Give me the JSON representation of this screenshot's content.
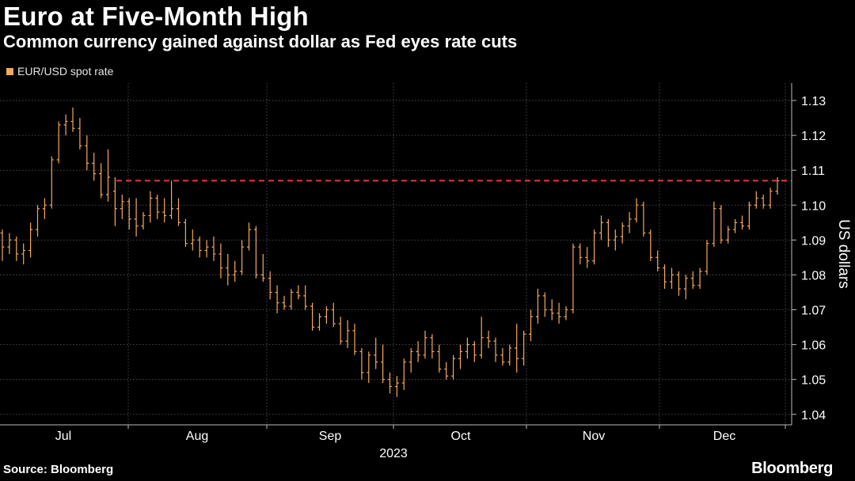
{
  "title": "Euro at Five-Month High",
  "subtitle": "Common currency gained against dollar as Fed eyes rate cuts",
  "legend_label": "EUR/USD spot rate",
  "source": "Source: Bloomberg",
  "brand": "Bloomberg",
  "colors": {
    "series": "#f5a95b",
    "reference": "#e8363d",
    "grid": "#5a5a5a",
    "axis": "#bdbdbd",
    "background": "#000000"
  },
  "chart_data": {
    "type": "bar",
    "subtype": "ohlc",
    "title": "Euro at Five-Month High",
    "subtitle": "Common currency gained against dollar as Fed eyes rate cuts",
    "xlabel": "2023",
    "ylabel": "US dollars",
    "ylim": [
      1.037,
      1.135
    ],
    "yticks": [
      1.04,
      1.05,
      1.06,
      1.07,
      1.08,
      1.09,
      1.1,
      1.11,
      1.12,
      1.13
    ],
    "ytick_labels": [
      "1.04",
      "1.05",
      "1.06",
      "1.07",
      "1.08",
      "1.09",
      "1.10",
      "1.11",
      "1.12",
      "1.13"
    ],
    "month_labels": [
      "Jul",
      "Aug",
      "Sep",
      "Oct",
      "Nov",
      "Dec"
    ],
    "year_label": "2023",
    "legend": [
      "EUR/USD spot rate"
    ],
    "reference_line": {
      "value": 1.107,
      "style": "dashed"
    },
    "grid": true,
    "series": [
      {
        "name": "EUR/USD spot rate",
        "ohlc": [
          [
            1.092,
            1.093,
            1.084,
            1.088
          ],
          [
            1.088,
            1.092,
            1.086,
            1.09
          ],
          [
            1.09,
            1.091,
            1.084,
            1.086
          ],
          [
            1.086,
            1.089,
            1.083,
            1.087
          ],
          [
            1.087,
            1.095,
            1.085,
            1.093
          ],
          [
            1.093,
            1.1,
            1.091,
            1.099
          ],
          [
            1.099,
            1.102,
            1.096,
            1.1
          ],
          [
            1.1,
            1.114,
            1.099,
            1.113
          ],
          [
            1.113,
            1.124,
            1.112,
            1.123
          ],
          [
            1.123,
            1.126,
            1.12,
            1.124
          ],
          [
            1.124,
            1.128,
            1.121,
            1.122
          ],
          [
            1.122,
            1.125,
            1.116,
            1.117
          ],
          [
            1.117,
            1.12,
            1.11,
            1.112
          ],
          [
            1.112,
            1.115,
            1.107,
            1.109
          ],
          [
            1.109,
            1.112,
            1.102,
            1.103
          ],
          [
            1.103,
            1.116,
            1.101,
            1.108
          ],
          [
            1.104,
            1.108,
            1.094,
            1.099
          ],
          [
            1.099,
            1.103,
            1.096,
            1.101
          ],
          [
            1.101,
            1.102,
            1.093,
            1.096
          ],
          [
            1.096,
            1.102,
            1.091,
            1.094
          ],
          [
            1.094,
            1.098,
            1.093,
            1.097
          ],
          [
            1.097,
            1.104,
            1.095,
            1.102
          ],
          [
            1.102,
            1.103,
            1.096,
            1.098
          ],
          [
            1.098,
            1.102,
            1.095,
            1.097
          ],
          [
            1.097,
            1.107,
            1.096,
            1.099
          ],
          [
            1.099,
            1.102,
            1.094,
            1.095
          ],
          [
            1.095,
            1.096,
            1.088,
            1.089
          ],
          [
            1.089,
            1.093,
            1.087,
            1.09
          ],
          [
            1.09,
            1.091,
            1.085,
            1.087
          ],
          [
            1.087,
            1.09,
            1.085,
            1.088
          ],
          [
            1.088,
            1.091,
            1.084,
            1.086
          ],
          [
            1.086,
            1.089,
            1.079,
            1.082
          ],
          [
            1.082,
            1.086,
            1.077,
            1.08
          ],
          [
            1.08,
            1.084,
            1.078,
            1.081
          ],
          [
            1.081,
            1.09,
            1.08,
            1.088
          ],
          [
            1.088,
            1.095,
            1.087,
            1.093
          ],
          [
            1.093,
            1.094,
            1.079,
            1.08
          ],
          [
            1.08,
            1.086,
            1.078,
            1.079
          ],
          [
            1.079,
            1.081,
            1.073,
            1.075
          ],
          [
            1.075,
            1.077,
            1.069,
            1.072
          ],
          [
            1.072,
            1.074,
            1.07,
            1.071
          ],
          [
            1.071,
            1.076,
            1.07,
            1.075
          ],
          [
            1.075,
            1.077,
            1.073,
            1.074
          ],
          [
            1.074,
            1.077,
            1.07,
            1.071
          ],
          [
            1.071,
            1.072,
            1.064,
            1.065
          ],
          [
            1.065,
            1.069,
            1.064,
            1.068
          ],
          [
            1.068,
            1.071,
            1.066,
            1.07
          ],
          [
            1.07,
            1.072,
            1.065,
            1.066
          ],
          [
            1.066,
            1.068,
            1.06,
            1.061
          ],
          [
            1.061,
            1.067,
            1.059,
            1.064
          ],
          [
            1.064,
            1.066,
            1.057,
            1.058
          ],
          [
            1.058,
            1.059,
            1.05,
            1.052
          ],
          [
            1.052,
            1.058,
            1.049,
            1.057
          ],
          [
            1.057,
            1.062,
            1.053,
            1.055
          ],
          [
            1.055,
            1.06,
            1.049,
            1.05
          ],
          [
            1.05,
            1.052,
            1.046,
            1.048
          ],
          [
            1.048,
            1.051,
            1.045,
            1.049
          ],
          [
            1.049,
            1.056,
            1.047,
            1.055
          ],
          [
            1.055,
            1.059,
            1.052,
            1.058
          ],
          [
            1.058,
            1.061,
            1.055,
            1.057
          ],
          [
            1.057,
            1.064,
            1.056,
            1.062
          ],
          [
            1.062,
            1.063,
            1.056,
            1.058
          ],
          [
            1.058,
            1.06,
            1.052,
            1.053
          ],
          [
            1.053,
            1.055,
            1.05,
            1.051
          ],
          [
            1.051,
            1.057,
            1.05,
            1.056
          ],
          [
            1.056,
            1.06,
            1.053,
            1.058
          ],
          [
            1.058,
            1.062,
            1.056,
            1.06
          ],
          [
            1.06,
            1.061,
            1.055,
            1.057
          ],
          [
            1.057,
            1.068,
            1.056,
            1.062
          ],
          [
            1.062,
            1.064,
            1.059,
            1.061
          ],
          [
            1.061,
            1.062,
            1.055,
            1.057
          ],
          [
            1.057,
            1.059,
            1.054,
            1.055
          ],
          [
            1.055,
            1.06,
            1.054,
            1.059
          ],
          [
            1.059,
            1.066,
            1.052,
            1.056
          ],
          [
            1.056,
            1.064,
            1.054,
            1.063
          ],
          [
            1.063,
            1.07,
            1.061,
            1.068
          ],
          [
            1.068,
            1.076,
            1.066,
            1.074
          ],
          [
            1.074,
            1.075,
            1.068,
            1.07
          ],
          [
            1.07,
            1.073,
            1.067,
            1.069
          ],
          [
            1.069,
            1.072,
            1.066,
            1.068
          ],
          [
            1.068,
            1.071,
            1.067,
            1.07
          ],
          [
            1.07,
            1.089,
            1.069,
            1.088
          ],
          [
            1.088,
            1.089,
            1.083,
            1.085
          ],
          [
            1.085,
            1.088,
            1.082,
            1.084
          ],
          [
            1.084,
            1.093,
            1.083,
            1.092
          ],
          [
            1.092,
            1.097,
            1.09,
            1.095
          ],
          [
            1.095,
            1.096,
            1.088,
            1.09
          ],
          [
            1.09,
            1.093,
            1.087,
            1.091
          ],
          [
            1.091,
            1.095,
            1.089,
            1.094
          ],
          [
            1.094,
            1.098,
            1.092,
            1.096
          ],
          [
            1.096,
            1.102,
            1.095,
            1.1
          ],
          [
            1.1,
            1.101,
            1.091,
            1.092
          ],
          [
            1.092,
            1.093,
            1.084,
            1.085
          ],
          [
            1.085,
            1.087,
            1.081,
            1.082
          ],
          [
            1.082,
            1.083,
            1.076,
            1.078
          ],
          [
            1.078,
            1.082,
            1.076,
            1.08
          ],
          [
            1.08,
            1.081,
            1.074,
            1.076
          ],
          [
            1.076,
            1.08,
            1.073,
            1.079
          ],
          [
            1.079,
            1.081,
            1.076,
            1.077
          ],
          [
            1.077,
            1.082,
            1.076,
            1.081
          ],
          [
            1.081,
            1.09,
            1.08,
            1.089
          ],
          [
            1.089,
            1.101,
            1.088,
            1.099
          ],
          [
            1.099,
            1.1,
            1.089,
            1.09
          ],
          [
            1.09,
            1.094,
            1.089,
            1.093
          ],
          [
            1.093,
            1.096,
            1.092,
            1.095
          ],
          [
            1.095,
            1.097,
            1.093,
            1.094
          ],
          [
            1.094,
            1.101,
            1.093,
            1.1
          ],
          [
            1.1,
            1.104,
            1.099,
            1.102
          ],
          [
            1.102,
            1.103,
            1.099,
            1.1
          ],
          [
            1.1,
            1.105,
            1.099,
            1.104
          ],
          [
            1.104,
            1.108,
            1.103,
            1.107
          ]
        ]
      }
    ]
  }
}
